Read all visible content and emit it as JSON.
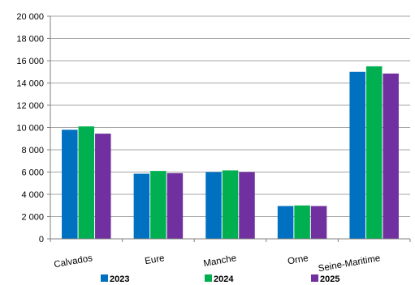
{
  "chart_data": {
    "type": "bar",
    "categories": [
      "Calvados",
      "Eure",
      "Manche",
      "Orne",
      "Seine-Maritime"
    ],
    "series": [
      {
        "name": "2023",
        "color": "#0070C0",
        "values": [
          9800,
          5850,
          6000,
          2950,
          15000
        ]
      },
      {
        "name": "2024",
        "color": "#00B050",
        "values": [
          10100,
          6100,
          6150,
          3000,
          15500
        ]
      },
      {
        "name": "2025",
        "color": "#7030A0",
        "values": [
          9450,
          5900,
          6000,
          2950,
          14850
        ]
      }
    ],
    "y_ticks": [
      "0",
      "2 000",
      "4 000",
      "6 000",
      "8 000",
      "10 000",
      "12 000",
      "14 000",
      "16 000",
      "18 000",
      "20 000"
    ],
    "ylim": [
      0,
      20000
    ],
    "grid": true,
    "legend_position": "bottom"
  }
}
